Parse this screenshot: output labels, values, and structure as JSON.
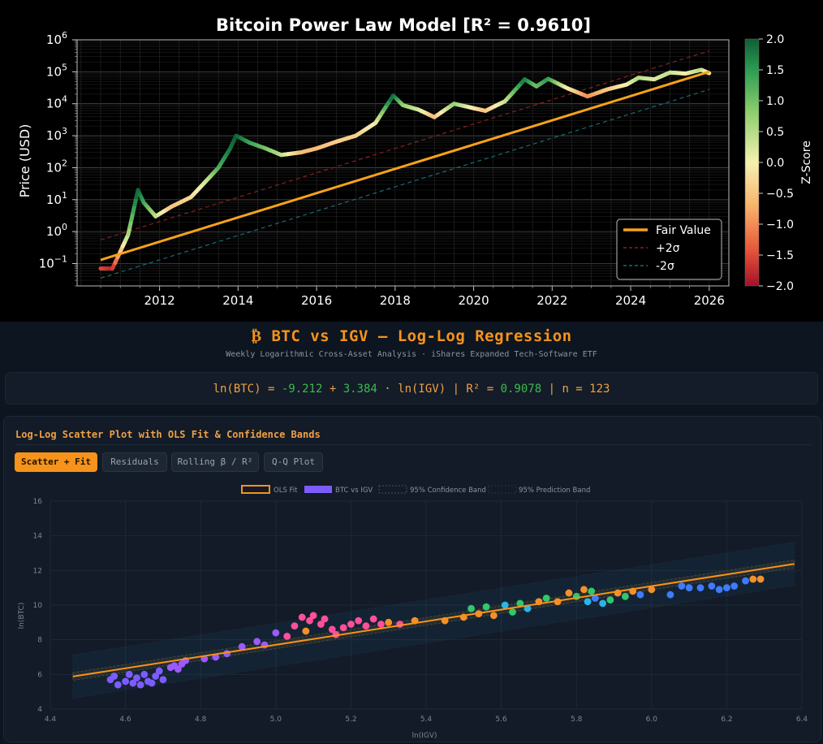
{
  "top_chart": {
    "title": "Bitcoin Power Law Model [R² = 0.9610]",
    "ylabel": "Price (USD)",
    "y_ticks": [
      {
        "value": -1,
        "label_base": "10",
        "label_exp": "−1"
      },
      {
        "value": 0,
        "label_base": "10",
        "label_exp": "0"
      },
      {
        "value": 1,
        "label_base": "10",
        "label_exp": "1"
      },
      {
        "value": 2,
        "label_base": "10",
        "label_exp": "2"
      },
      {
        "value": 3,
        "label_base": "10",
        "label_exp": "3"
      },
      {
        "value": 4,
        "label_base": "10",
        "label_exp": "4"
      },
      {
        "value": 5,
        "label_base": "10",
        "label_exp": "5"
      },
      {
        "value": 6,
        "label_base": "10",
        "label_exp": "6"
      }
    ],
    "x_ticks": [
      "2012",
      "2014",
      "2016",
      "2018",
      "2020",
      "2022",
      "2024",
      "2026"
    ],
    "legend": [
      "Fair Value",
      "+2σ",
      "-2σ"
    ],
    "colorbar": {
      "label": "Z-Score",
      "ticks": [
        "2.0",
        "1.5",
        "1.0",
        "0.5",
        "0.0",
        "−0.5",
        "−1.0",
        "−1.5",
        "−2.0"
      ]
    },
    "colors": {
      "fair_value": "#f7a21b",
      "plus_band": "#8b2020",
      "minus_band": "#1c6b73"
    }
  },
  "header": {
    "title": "₿ BTC vs IGV — Log-Log Regression",
    "subtitle": "Weekly Logarithmic Cross-Asset Analysis · iShares Expanded Tech-Software ETF"
  },
  "equation": {
    "lhs": "ln(BTC) = ",
    "intercept": "-9.212",
    "plus": " + ",
    "slope": "3.384",
    "term": " · ln(IGV) | R² = ",
    "r2": "0.9078",
    "n_label": " | n = 123"
  },
  "card": {
    "title": "Log-Log Scatter Plot with OLS Fit & Confidence Bands",
    "tabs": [
      "Scatter + Fit",
      "Residuals",
      "Rolling β / R²",
      "Q-Q Plot"
    ],
    "active_tab": 0
  },
  "chart_data": [
    {
      "type": "line",
      "title": "Bitcoin Power Law Model [R² = 0.9610]",
      "xlabel": "",
      "ylabel": "Price (USD)",
      "y_scale": "log",
      "ylim": [
        0.02,
        1000000
      ],
      "xlim": [
        2009.9,
        2026.5
      ],
      "series": [
        {
          "name": "Fair Value",
          "x": [
            2010.5,
            2026.0
          ],
          "y": [
            0.13,
            100000
          ]
        },
        {
          "name": "+2σ",
          "x": [
            2010.5,
            2026.0
          ],
          "y": [
            0.55,
            450000
          ]
        },
        {
          "name": "-2σ",
          "x": [
            2010.5,
            2026.0
          ],
          "y": [
            0.035,
            28000
          ]
        },
        {
          "name": "Price (colored by Z-Score)",
          "x": [
            2010.5,
            2010.8,
            2011.2,
            2011.45,
            2011.6,
            2011.9,
            2012.3,
            2012.8,
            2013.2,
            2013.5,
            2013.8,
            2013.95,
            2014.3,
            2014.7,
            2015.1,
            2015.6,
            2016.0,
            2016.5,
            2017.0,
            2017.5,
            2017.95,
            2018.2,
            2018.6,
            2019.0,
            2019.5,
            2019.95,
            2020.3,
            2020.8,
            2021.3,
            2021.6,
            2021.9,
            2022.4,
            2022.9,
            2023.4,
            2023.9,
            2024.2,
            2024.6,
            2025.0,
            2025.4,
            2025.8,
            2026.0
          ],
          "y": [
            0.07,
            0.07,
            0.8,
            20,
            8,
            3,
            6,
            12,
            40,
            100,
            400,
            1000,
            600,
            400,
            250,
            300,
            400,
            650,
            1000,
            2500,
            18000,
            9000,
            6500,
            3800,
            10000,
            7500,
            6000,
            12000,
            58000,
            35000,
            60000,
            30000,
            17000,
            28000,
            40000,
            65000,
            58000,
            95000,
            88000,
            115000,
            90000
          ],
          "z_score": [
            -1.5,
            -1.8,
            0.5,
            2.0,
            1.4,
            0.5,
            -0.5,
            -0.3,
            0.3,
            1.2,
            1.8,
            2.0,
            1.4,
            1.0,
            0.5,
            -0.6,
            -0.6,
            -0.4,
            -0.4,
            0.0,
            2.0,
            0.8,
            0.3,
            -0.6,
            0.8,
            0.0,
            -0.5,
            0.3,
            1.8,
            1.0,
            1.5,
            0.0,
            -1.0,
            -0.5,
            0.0,
            0.5,
            0.2,
            0.4,
            0.0,
            0.5,
            -0.3
          ]
        }
      ],
      "colorbar": {
        "label": "Z-Score",
        "range": [
          -2.0,
          2.0
        ]
      },
      "legend": "bottom-right",
      "grid": true
    },
    {
      "type": "scatter",
      "title": "",
      "xlabel": "ln(IGV)",
      "ylabel": "ln(BTC)",
      "xlim": [
        4.4,
        6.4
      ],
      "ylim": [
        4,
        16
      ],
      "x_ticks": [
        "4.4",
        "4.6",
        "4.8",
        "5.0",
        "5.2",
        "5.4",
        "5.6",
        "5.8",
        "6.0",
        "6.2",
        "6.4"
      ],
      "y_ticks": [
        "4",
        "6",
        "8",
        "10",
        "12",
        "14",
        "16"
      ],
      "legend_labels": [
        "OLS Fit",
        "BTC vs IGV",
        "95% Confidence Band",
        "95% Prediction Band"
      ],
      "legend": "top-center",
      "grid": true,
      "fit": {
        "x": [
          4.46,
          6.38
        ],
        "y": [
          5.88,
          12.38
        ],
        "confidence_halfwidth": 0.22,
        "prediction_halfwidth": 1.25
      },
      "series": [
        {
          "name": "BTC vs IGV",
          "colors": [
            "#7c5cff",
            "#9b59ff",
            "#ff4f9a",
            "#f4902a",
            "#33c66b",
            "#2bb5e8",
            "#3e7bff"
          ],
          "points": [
            {
              "x": 4.56,
              "y": 5.7,
              "c": 0
            },
            {
              "x": 4.57,
              "y": 5.9,
              "c": 0
            },
            {
              "x": 4.58,
              "y": 5.4,
              "c": 0
            },
            {
              "x": 4.6,
              "y": 5.6,
              "c": 0
            },
            {
              "x": 4.61,
              "y": 6.0,
              "c": 0
            },
            {
              "x": 4.62,
              "y": 5.5,
              "c": 0
            },
            {
              "x": 4.63,
              "y": 5.8,
              "c": 0
            },
            {
              "x": 4.64,
              "y": 5.4,
              "c": 0
            },
            {
              "x": 4.65,
              "y": 6.0,
              "c": 0
            },
            {
              "x": 4.66,
              "y": 5.6,
              "c": 0
            },
            {
              "x": 4.67,
              "y": 5.5,
              "c": 0
            },
            {
              "x": 4.68,
              "y": 5.9,
              "c": 0
            },
            {
              "x": 4.69,
              "y": 6.2,
              "c": 0
            },
            {
              "x": 4.7,
              "y": 5.7,
              "c": 0
            },
            {
              "x": 4.72,
              "y": 6.4,
              "c": 1
            },
            {
              "x": 4.73,
              "y": 6.5,
              "c": 1
            },
            {
              "x": 4.74,
              "y": 6.3,
              "c": 1
            },
            {
              "x": 4.75,
              "y": 6.6,
              "c": 1
            },
            {
              "x": 4.76,
              "y": 6.8,
              "c": 1
            },
            {
              "x": 4.81,
              "y": 6.9,
              "c": 1
            },
            {
              "x": 4.84,
              "y": 7.0,
              "c": 1
            },
            {
              "x": 4.87,
              "y": 7.2,
              "c": 1
            },
            {
              "x": 4.91,
              "y": 7.6,
              "c": 1
            },
            {
              "x": 4.95,
              "y": 7.9,
              "c": 1
            },
            {
              "x": 4.97,
              "y": 7.7,
              "c": 1
            },
            {
              "x": 5.0,
              "y": 8.4,
              "c": 1
            },
            {
              "x": 5.03,
              "y": 8.2,
              "c": 2
            },
            {
              "x": 5.05,
              "y": 8.8,
              "c": 2
            },
            {
              "x": 5.07,
              "y": 9.3,
              "c": 2
            },
            {
              "x": 5.08,
              "y": 8.5,
              "c": 3
            },
            {
              "x": 5.09,
              "y": 9.1,
              "c": 2
            },
            {
              "x": 5.1,
              "y": 9.4,
              "c": 2
            },
            {
              "x": 5.12,
              "y": 8.9,
              "c": 2
            },
            {
              "x": 5.13,
              "y": 9.2,
              "c": 2
            },
            {
              "x": 5.15,
              "y": 8.6,
              "c": 2
            },
            {
              "x": 5.16,
              "y": 8.3,
              "c": 2
            },
            {
              "x": 5.18,
              "y": 8.7,
              "c": 2
            },
            {
              "x": 5.2,
              "y": 8.9,
              "c": 2
            },
            {
              "x": 5.22,
              "y": 9.1,
              "c": 2
            },
            {
              "x": 5.24,
              "y": 8.8,
              "c": 2
            },
            {
              "x": 5.26,
              "y": 9.2,
              "c": 2
            },
            {
              "x": 5.28,
              "y": 8.9,
              "c": 2
            },
            {
              "x": 5.3,
              "y": 9.0,
              "c": 3
            },
            {
              "x": 5.33,
              "y": 8.9,
              "c": 2
            },
            {
              "x": 5.37,
              "y": 9.1,
              "c": 3
            },
            {
              "x": 5.45,
              "y": 9.1,
              "c": 3
            },
            {
              "x": 5.5,
              "y": 9.3,
              "c": 3
            },
            {
              "x": 5.52,
              "y": 9.8,
              "c": 4
            },
            {
              "x": 5.54,
              "y": 9.5,
              "c": 3
            },
            {
              "x": 5.56,
              "y": 9.9,
              "c": 4
            },
            {
              "x": 5.58,
              "y": 9.4,
              "c": 3
            },
            {
              "x": 5.61,
              "y": 10.0,
              "c": 5
            },
            {
              "x": 5.63,
              "y": 9.6,
              "c": 4
            },
            {
              "x": 5.65,
              "y": 10.1,
              "c": 4
            },
            {
              "x": 5.67,
              "y": 9.8,
              "c": 5
            },
            {
              "x": 5.7,
              "y": 10.2,
              "c": 3
            },
            {
              "x": 5.72,
              "y": 10.4,
              "c": 4
            },
            {
              "x": 5.75,
              "y": 10.2,
              "c": 3
            },
            {
              "x": 5.78,
              "y": 10.7,
              "c": 3
            },
            {
              "x": 5.8,
              "y": 10.5,
              "c": 4
            },
            {
              "x": 5.82,
              "y": 10.9,
              "c": 3
            },
            {
              "x": 5.83,
              "y": 10.2,
              "c": 5
            },
            {
              "x": 5.84,
              "y": 10.8,
              "c": 4
            },
            {
              "x": 5.85,
              "y": 10.4,
              "c": 6
            },
            {
              "x": 5.87,
              "y": 10.1,
              "c": 5
            },
            {
              "x": 5.89,
              "y": 10.3,
              "c": 4
            },
            {
              "x": 5.91,
              "y": 10.7,
              "c": 3
            },
            {
              "x": 5.93,
              "y": 10.5,
              "c": 4
            },
            {
              "x": 5.95,
              "y": 10.8,
              "c": 3
            },
            {
              "x": 5.97,
              "y": 10.6,
              "c": 6
            },
            {
              "x": 6.0,
              "y": 10.9,
              "c": 3
            },
            {
              "x": 6.05,
              "y": 10.6,
              "c": 6
            },
            {
              "x": 6.08,
              "y": 11.1,
              "c": 6
            },
            {
              "x": 6.1,
              "y": 11.0,
              "c": 6
            },
            {
              "x": 6.13,
              "y": 11.0,
              "c": 6
            },
            {
              "x": 6.16,
              "y": 11.1,
              "c": 6
            },
            {
              "x": 6.18,
              "y": 10.9,
              "c": 6
            },
            {
              "x": 6.2,
              "y": 11.0,
              "c": 6
            },
            {
              "x": 6.22,
              "y": 11.1,
              "c": 6
            },
            {
              "x": 6.25,
              "y": 11.4,
              "c": 6
            },
            {
              "x": 6.27,
              "y": 11.5,
              "c": 3
            },
            {
              "x": 6.29,
              "y": 11.5,
              "c": 3
            }
          ]
        }
      ]
    }
  ]
}
